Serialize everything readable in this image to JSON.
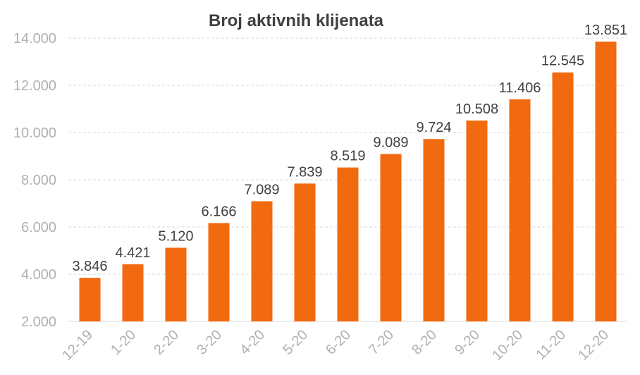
{
  "chart_data": {
    "type": "bar",
    "title": "Broj aktivnih klijenata",
    "categories": [
      "12-19",
      "1-20",
      "2-20",
      "3-20",
      "4-20",
      "5-20",
      "6-20",
      "7-20",
      "8-20",
      "9-20",
      "10-20",
      "11-20",
      "12-20"
    ],
    "values": [
      3846,
      4421,
      5120,
      6166,
      7089,
      7839,
      8519,
      9089,
      9724,
      10508,
      11406,
      12545,
      13851
    ],
    "value_labels": [
      "3.846",
      "4.421",
      "5.120",
      "6.166",
      "7.089",
      "7.839",
      "8.519",
      "9.089",
      "9.724",
      "10.508",
      "11.406",
      "12.545",
      "13.851"
    ],
    "yticks": [
      2000,
      4000,
      6000,
      8000,
      10000,
      12000,
      14000
    ],
    "ytick_labels": [
      "2.000",
      "4.000",
      "6.000",
      "8.000",
      "10.000",
      "12.000",
      "14.000"
    ],
    "ylim": [
      2000,
      14000
    ],
    "xlabel": "",
    "ylabel": "",
    "grid": true,
    "legend": "none",
    "bar_color": "#f26a10"
  }
}
